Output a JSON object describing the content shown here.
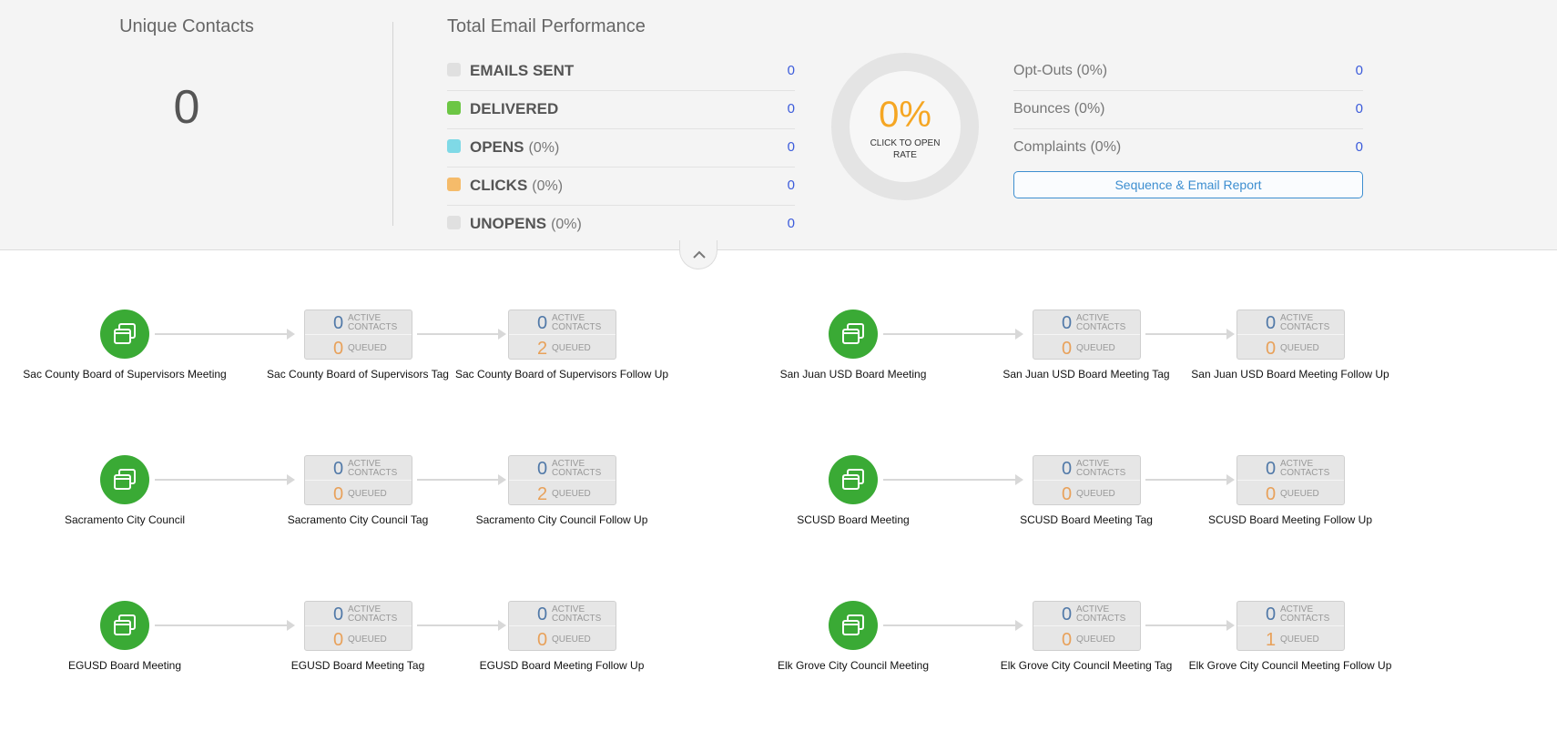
{
  "unique_contacts": {
    "title": "Unique Contacts",
    "value": "0"
  },
  "email_performance": {
    "title": "Total Email Performance",
    "metrics": [
      {
        "label": "EMAILS SENT",
        "pct": "",
        "value": "0",
        "color": "#e0e0e0"
      },
      {
        "label": "DELIVERED",
        "pct": "",
        "value": "0",
        "color": "#6cc644"
      },
      {
        "label": "OPENS",
        "pct": "(0%)",
        "value": "0",
        "color": "#7fd9e6"
      },
      {
        "label": "CLICKS",
        "pct": "(0%)",
        "value": "0",
        "color": "#f5bb6a"
      },
      {
        "label": "UNOPENS",
        "pct": "(0%)",
        "value": "0",
        "color": "#e0e0e0"
      }
    ],
    "donut": {
      "value": "0%",
      "caption": "CLICK TO OPEN RATE"
    },
    "secondary": [
      {
        "label": "Opt-Outs (0%)",
        "value": "0"
      },
      {
        "label": "Bounces (0%)",
        "value": "0"
      },
      {
        "label": "Complaints (0%)",
        "value": "0"
      }
    ],
    "report_button": "Sequence & Email Report"
  },
  "labels": {
    "active": "ACTIVE",
    "contacts": "CONTACTS",
    "queued": "QUEUED"
  },
  "icons": {
    "sequence": "sequence-copy-icon",
    "collapse": "chevron-up-icon"
  },
  "sequences": [
    {
      "start": "Sac County Board of Supervisors Meeting",
      "tag": {
        "name": "Sac County Board of Supervisors Tag",
        "active": "0",
        "queued": "0"
      },
      "followup": {
        "name": "Sac County Board of Supervisors Follow Up",
        "active": "0",
        "queued": "2"
      }
    },
    {
      "start": "San Juan USD Board Meeting",
      "tag": {
        "name": "San Juan USD Board Meeting Tag",
        "active": "0",
        "queued": "0"
      },
      "followup": {
        "name": "San Juan USD Board Meeting Follow Up",
        "active": "0",
        "queued": "0"
      }
    },
    {
      "start": "Sacramento City Council",
      "tag": {
        "name": "Sacramento City Council Tag",
        "active": "0",
        "queued": "0"
      },
      "followup": {
        "name": "Sacramento City Council Follow Up",
        "active": "0",
        "queued": "2"
      }
    },
    {
      "start": "SCUSD Board Meeting",
      "tag": {
        "name": "SCUSD Board Meeting Tag",
        "active": "0",
        "queued": "0"
      },
      "followup": {
        "name": "SCUSD Board Meeting Follow Up",
        "active": "0",
        "queued": "0"
      }
    },
    {
      "start": "EGUSD Board Meeting",
      "tag": {
        "name": "EGUSD Board Meeting Tag",
        "active": "0",
        "queued": "0"
      },
      "followup": {
        "name": "EGUSD Board Meeting Follow Up",
        "active": "0",
        "queued": "0"
      }
    },
    {
      "start": "Elk Grove City Council Meeting",
      "tag": {
        "name": "Elk Grove City Council Meeting Tag",
        "active": "0",
        "queued": "0"
      },
      "followup": {
        "name": "Elk Grove City Council Meeting Follow Up",
        "active": "0",
        "queued": "1"
      }
    }
  ]
}
